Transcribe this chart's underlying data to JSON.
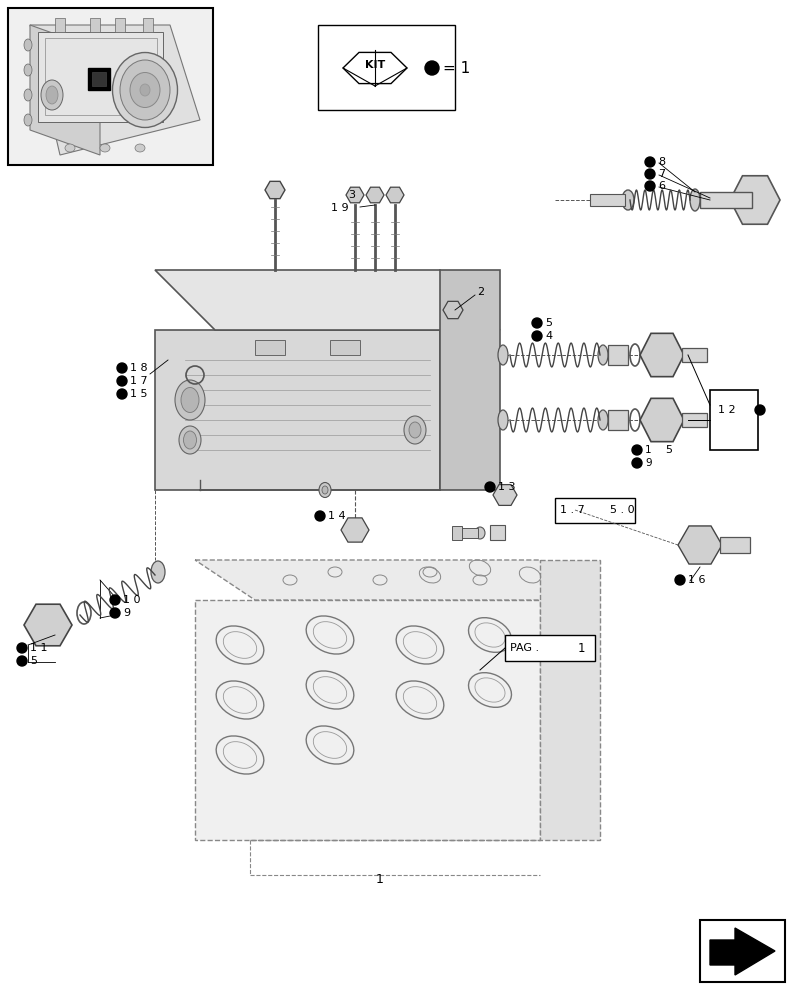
{
  "bg_color": "#ffffff",
  "lc": "#000000",
  "gray1": "#cccccc",
  "gray2": "#aaaaaa",
  "gray3": "#888888",
  "gray4": "#666666",
  "gray5": "#444444",
  "light_fill": "#e8e8e8",
  "mid_fill": "#d0d0d0",
  "dark_fill": "#b8b8b8"
}
